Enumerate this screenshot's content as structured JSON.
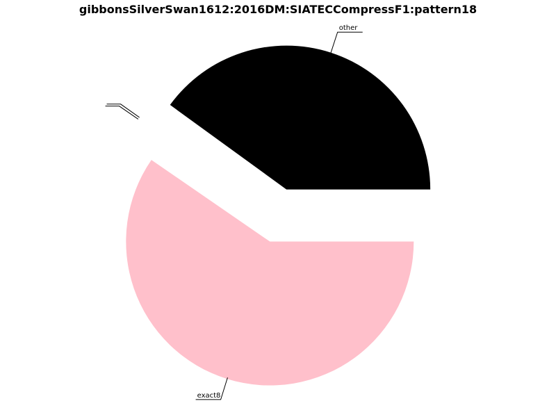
{
  "chart_data": {
    "type": "pie",
    "title": "gibbonsSilverSwan1612:2016DM:SIATECCompressF1:pattern18",
    "slices": [
      {
        "label": "other",
        "value": 40,
        "color": "#000000"
      },
      {
        "label": "",
        "value": 0.4,
        "color": "#ffffff"
      },
      {
        "label": "",
        "value": 0,
        "color": "#ffffff"
      },
      {
        "label": "exact8",
        "value": 59.6,
        "color": "#ffc0cb"
      }
    ],
    "start_angle_deg": 0,
    "direction": "counterclockwise",
    "exploded": true
  }
}
